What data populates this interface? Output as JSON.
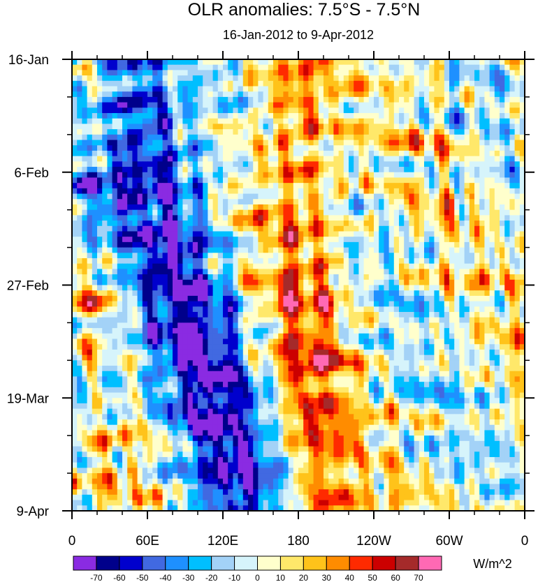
{
  "chart_data": {
    "type": "heatmap",
    "title": "OLR anomalies: 7.5°S - 7.5°N",
    "subtitle": "16-Jan-2012 to 9-Apr-2012",
    "xlabel": "",
    "ylabel": "",
    "x_ticks": [
      "0",
      "60E",
      "120E",
      "180",
      "120W",
      "60W",
      "0"
    ],
    "x_tick_lon": [
      0,
      60,
      120,
      180,
      240,
      300,
      360
    ],
    "y_ticks": [
      "16-Jan",
      "6-Feb",
      "27-Feb",
      "19-Mar",
      "9-Apr"
    ],
    "y_tick_day": [
      0,
      21,
      42,
      63,
      84
    ],
    "xlim": [
      0,
      360
    ],
    "ylim_days": [
      0,
      84
    ],
    "colorbar": {
      "units": "W/m^2",
      "labels": [
        "-70",
        "-60",
        "-50",
        "-40",
        "-30",
        "-20",
        "-10",
        "0",
        "10",
        "20",
        "30",
        "40",
        "50",
        "60",
        "70"
      ],
      "colors": [
        "#8a2be2",
        "#00008b",
        "#0000cd",
        "#4169e1",
        "#1e90ff",
        "#00bfff",
        "#a3d2f7",
        "#d6f4fb",
        "#ffffcc",
        "#ffe86a",
        "#ffc31a",
        "#ff8c00",
        "#ff2a00",
        "#cc0000",
        "#a52a2a",
        "#ff69b4"
      ]
    },
    "features": [
      {
        "description": "negative (enhanced convection) band",
        "lon_start": 40,
        "day_start": 0,
        "lon_end": 140,
        "day_end": 84
      },
      {
        "description": "positive (suppressed convection) band",
        "lon_start": 160,
        "day_start": 0,
        "lon_end": 200,
        "day_end": 84
      }
    ]
  }
}
